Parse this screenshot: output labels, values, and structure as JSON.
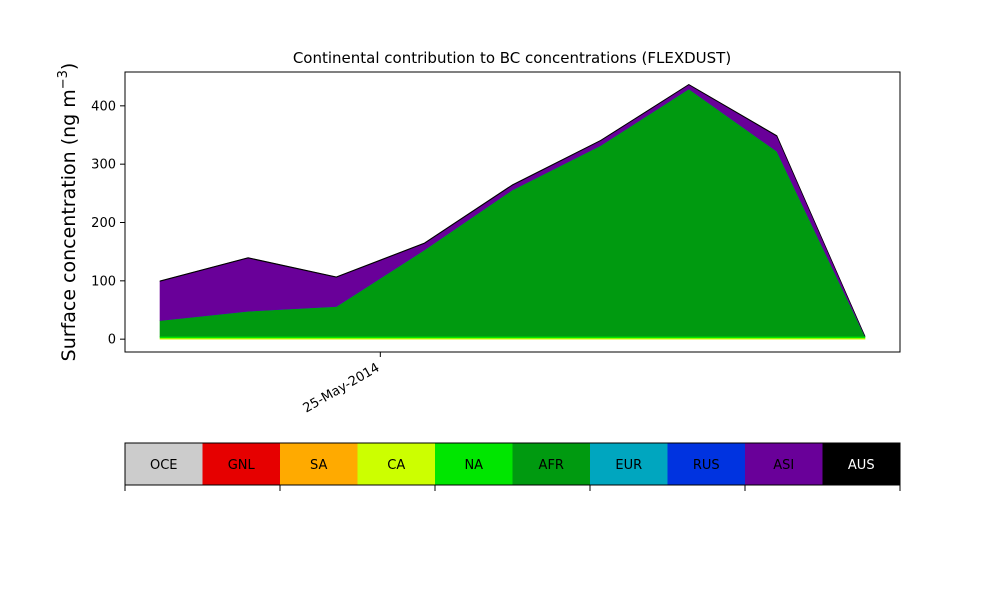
{
  "chart_data": {
    "type": "area",
    "title": "Continental contribution to BC concentrations (FLEXDUST)",
    "ylabel_main": "Surface concentration (ng m",
    "ylabel_exp": "−3",
    "ylabel_tail": ")",
    "xlabel": "",
    "ylim": [
      -22,
      458
    ],
    "yticks": [
      0,
      100,
      200,
      300,
      400
    ],
    "x_count": 9,
    "xticks": [
      {
        "index": 2.5,
        "label": "25-May-2014"
      }
    ],
    "stacked": true,
    "grid": false,
    "series": [
      {
        "name": "OCE",
        "color": "#cccccc",
        "values": [
          0,
          0,
          0,
          0,
          0,
          0,
          0,
          0,
          0
        ]
      },
      {
        "name": "GNL",
        "color": "#e60000",
        "values": [
          0,
          0,
          0,
          0,
          0,
          0,
          0,
          0,
          0
        ]
      },
      {
        "name": "SA",
        "color": "#ffaa00",
        "values": [
          0,
          0,
          0,
          0,
          0,
          0,
          0,
          0,
          0
        ]
      },
      {
        "name": "CA",
        "color": "#ccff00",
        "values": [
          2,
          2,
          2,
          2,
          2,
          2,
          2,
          2,
          2
        ]
      },
      {
        "name": "NA",
        "color": "#00e600",
        "values": [
          3,
          3,
          3,
          3,
          3,
          3,
          3,
          3,
          3
        ]
      },
      {
        "name": "AFR",
        "color": "#009a10",
        "values": [
          27,
          43,
          51,
          148,
          251,
          327,
          424,
          317,
          0
        ]
      },
      {
        "name": "EUR",
        "color": "#00a6bf",
        "values": [
          0,
          0,
          0,
          0,
          0,
          0,
          0,
          0,
          0
        ]
      },
      {
        "name": "RUS",
        "color": "#0033e0",
        "values": [
          0,
          0,
          0,
          0,
          0,
          0,
          0,
          0,
          0
        ]
      },
      {
        "name": "ASI",
        "color": "#690099",
        "values": [
          67,
          91,
          50,
          11,
          8,
          8,
          7,
          26,
          0
        ]
      },
      {
        "name": "AUS",
        "color": "#000000",
        "values": [
          1,
          1,
          1,
          1,
          1,
          1,
          1,
          1,
          0
        ]
      }
    ]
  },
  "legend": {
    "placement": "below plot",
    "labels": [
      "OCE",
      "GNL",
      "SA",
      "CA",
      "NA",
      "AFR",
      "EUR",
      "RUS",
      "ASI",
      "AUS"
    ],
    "colors": [
      "#cccccc",
      "#e60000",
      "#ffaa00",
      "#ccff00",
      "#00e600",
      "#009a10",
      "#00a6bf",
      "#0033e0",
      "#690099",
      "#000000"
    ],
    "text_colors": [
      "#000000",
      "#000000",
      "#000000",
      "#000000",
      "#000000",
      "#000000",
      "#000000",
      "#000000",
      "#000000",
      "#ffffff"
    ]
  }
}
